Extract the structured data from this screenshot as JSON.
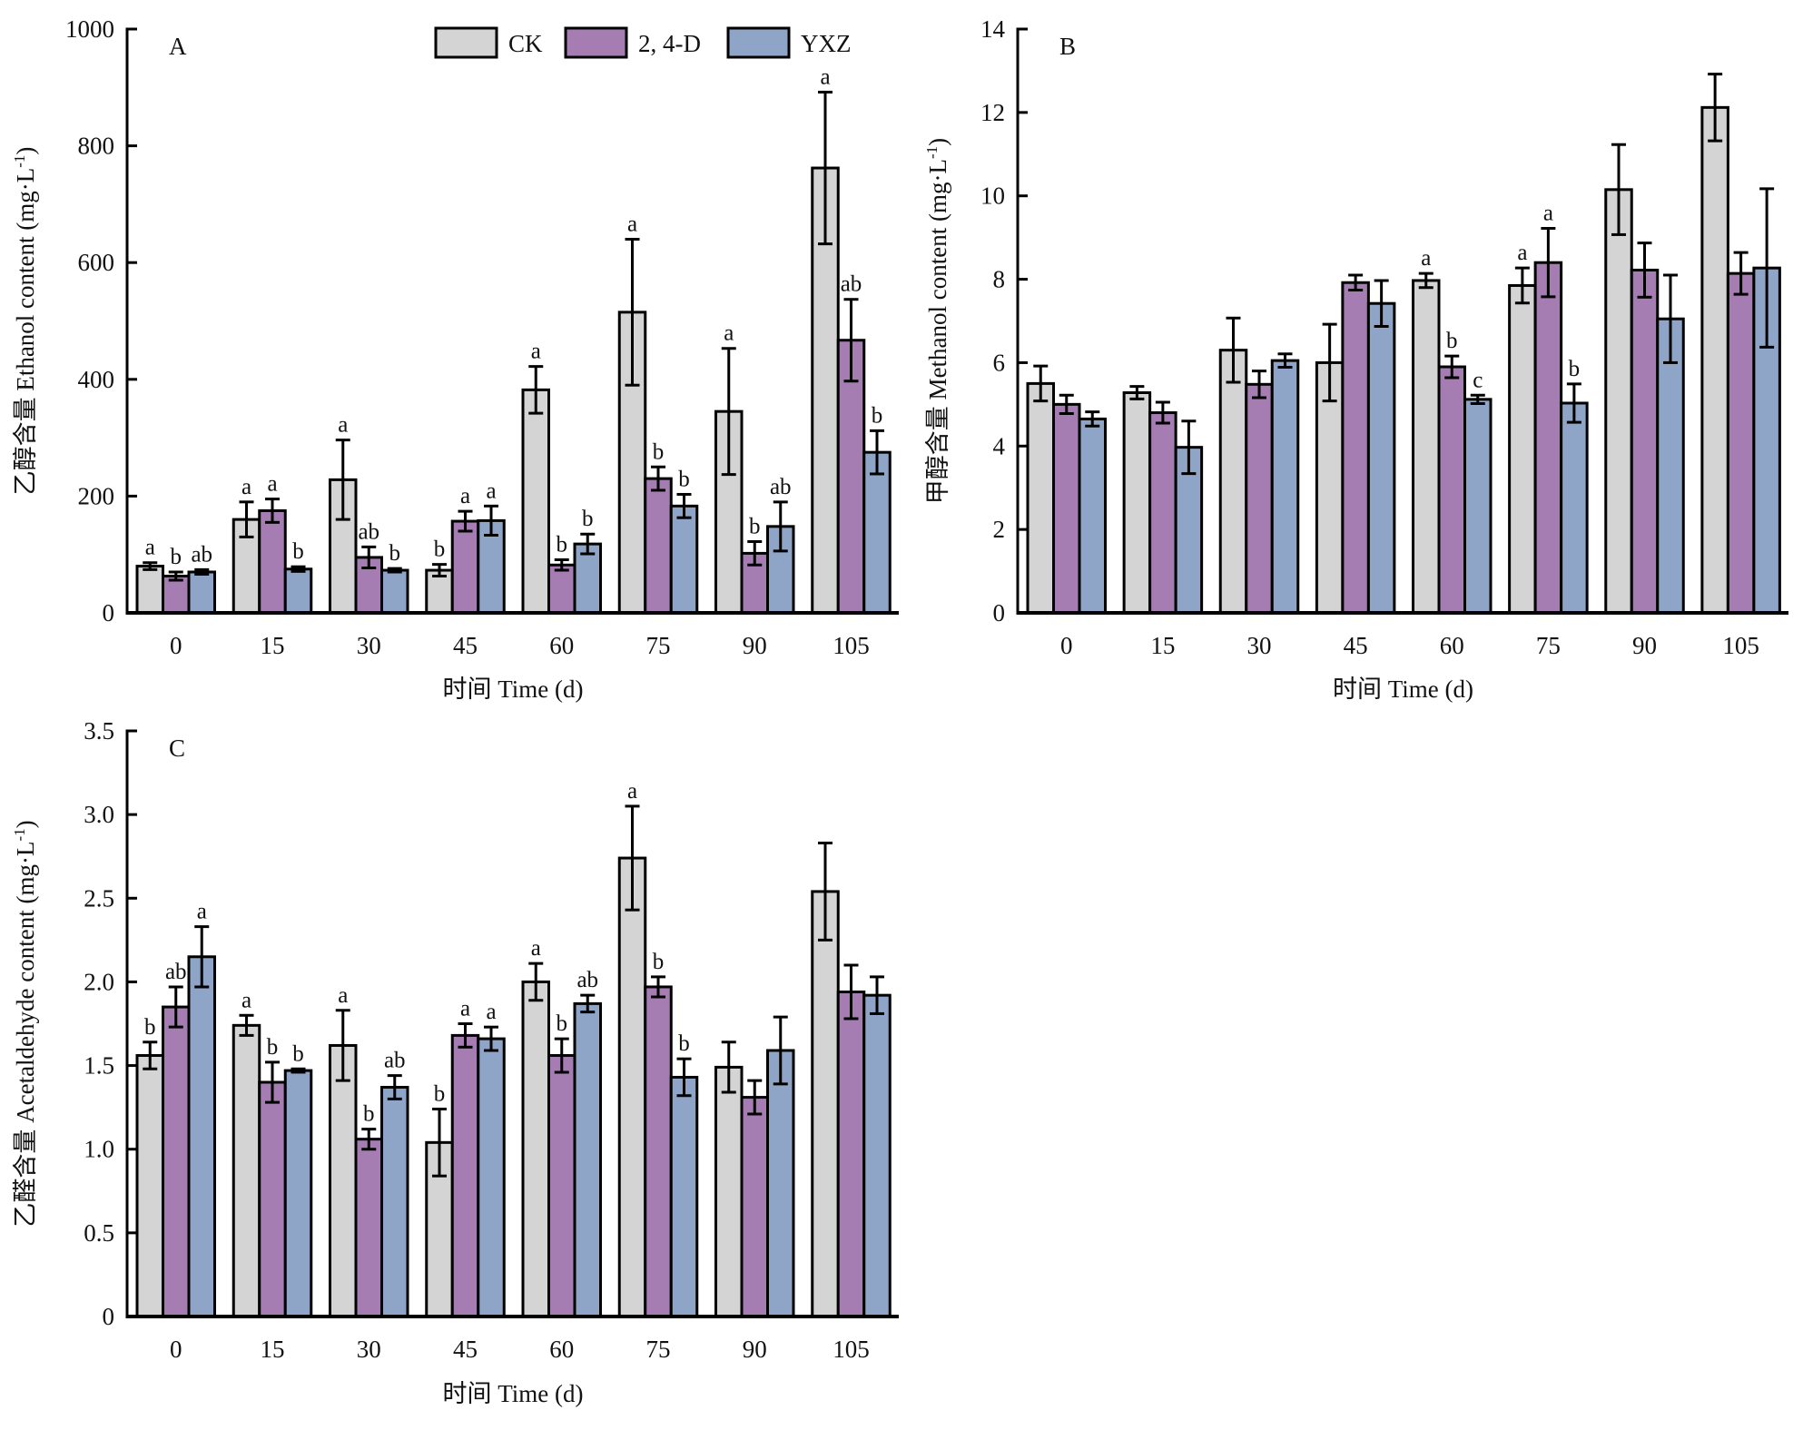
{
  "legend": {
    "entries": [
      {
        "name": "CK",
        "color": "#d4d4d4"
      },
      {
        "name": "2, 4-D",
        "color": "#a57db3"
      },
      {
        "name": "YXZ",
        "color": "#8fa5c8"
      }
    ]
  },
  "chart_data": [
    {
      "type": "bar",
      "panel": "A",
      "title": "",
      "xlabel": "时间 Time (d)",
      "ylabel": "乙醇含量 Ethanol content (mg·L⁻¹)",
      "ylabel_main": "乙醇含量 Ethanol content (mg·L",
      "ylabel_sup": "-1",
      "ylim": [
        0,
        1000
      ],
      "yticks": [
        0,
        200,
        400,
        600,
        800,
        1000
      ],
      "ytick_labels": [
        "0",
        "200",
        "400",
        "600",
        "800",
        "1000"
      ],
      "categories": [
        "0",
        "15",
        "30",
        "45",
        "60",
        "75",
        "90",
        "105"
      ],
      "legend_position": "top-right",
      "grid": false,
      "series": [
        {
          "name": "CK",
          "values": [
            80,
            160,
            228,
            73,
            382,
            515,
            345,
            762
          ],
          "errors": [
            6,
            30,
            68,
            10,
            40,
            125,
            108,
            130
          ],
          "letters": [
            "a",
            "a",
            "a",
            "b",
            "a",
            "a",
            "a",
            "a"
          ]
        },
        {
          "name": "2, 4-D",
          "values": [
            63,
            175,
            95,
            157,
            82,
            230,
            102,
            467
          ],
          "errors": [
            7,
            20,
            18,
            17,
            9,
            20,
            20,
            70
          ],
          "letters": [
            "b",
            "a",
            "ab",
            "a",
            "b",
            "b",
            "b",
            "ab"
          ]
        },
        {
          "name": "YXZ",
          "values": [
            70,
            75,
            73,
            158,
            118,
            183,
            148,
            275
          ],
          "errors": [
            4,
            4,
            3,
            25,
            17,
            20,
            42,
            37
          ],
          "letters": [
            "ab",
            "b",
            "b",
            "a",
            "b",
            "b",
            "ab",
            "b"
          ]
        }
      ]
    },
    {
      "type": "bar",
      "panel": "B",
      "title": "",
      "xlabel": "时间 Time (d)",
      "ylabel": "甲醇含量 Methanol content (mg·L⁻¹)",
      "ylabel_main": "甲醇含量 Methanol content (mg·L",
      "ylabel_sup": "-1",
      "ylim": [
        0,
        14
      ],
      "yticks": [
        0,
        2,
        4,
        6,
        8,
        10,
        12,
        14
      ],
      "ytick_labels": [
        "0",
        "2",
        "4",
        "6",
        "8",
        "10",
        "12",
        "14"
      ],
      "categories": [
        "0",
        "15",
        "30",
        "45",
        "60",
        "75",
        "90",
        "105"
      ],
      "grid": false,
      "series": [
        {
          "name": "CK",
          "values": [
            5.5,
            5.28,
            6.3,
            6.0,
            7.97,
            7.85,
            10.15,
            12.12
          ],
          "errors": [
            0.42,
            0.15,
            0.77,
            0.92,
            0.17,
            0.42,
            1.08,
            0.8
          ],
          "letters": [
            "",
            "",
            "",
            "",
            "a",
            "a",
            "",
            ""
          ]
        },
        {
          "name": "2, 4-D",
          "values": [
            5.0,
            4.8,
            5.48,
            7.92,
            5.9,
            8.4,
            8.22,
            8.14
          ],
          "errors": [
            0.22,
            0.25,
            0.32,
            0.18,
            0.26,
            0.82,
            0.65,
            0.5
          ],
          "letters": [
            "",
            "",
            "",
            "",
            "b",
            "a",
            "",
            ""
          ]
        },
        {
          "name": "YXZ",
          "values": [
            4.65,
            3.97,
            6.05,
            7.42,
            5.12,
            5.03,
            7.05,
            8.27
          ],
          "errors": [
            0.17,
            0.63,
            0.16,
            0.55,
            0.1,
            0.46,
            1.05,
            1.9
          ],
          "letters": [
            "",
            "",
            "",
            "",
            "c",
            "b",
            "",
            ""
          ]
        }
      ]
    },
    {
      "type": "bar",
      "panel": "C",
      "title": "",
      "xlabel": "时间 Time (d)",
      "ylabel": "乙醛含量 Acetaldehyde content (mg·L⁻¹)",
      "ylabel_main": "乙醛含量 Acetaldehyde content (mg·L",
      "ylabel_sup": "-1",
      "ylim": [
        0,
        3.5
      ],
      "yticks": [
        0,
        0.5,
        1.0,
        1.5,
        2.0,
        2.5,
        3.0,
        3.5
      ],
      "ytick_labels": [
        "0",
        "0.5",
        "1.0",
        "1.5",
        "2.0",
        "2.5",
        "3.0",
        "3.5"
      ],
      "categories": [
        "0",
        "15",
        "30",
        "45",
        "60",
        "75",
        "90",
        "105"
      ],
      "grid": false,
      "series": [
        {
          "name": "CK",
          "values": [
            1.56,
            1.74,
            1.62,
            1.04,
            2.0,
            2.74,
            1.49,
            2.54
          ],
          "errors": [
            0.08,
            0.06,
            0.21,
            0.2,
            0.11,
            0.31,
            0.15,
            0.29
          ],
          "letters": [
            "b",
            "a",
            "a",
            "b",
            "a",
            "a",
            "",
            ""
          ]
        },
        {
          "name": "2, 4-D",
          "values": [
            1.85,
            1.4,
            1.06,
            1.68,
            1.56,
            1.97,
            1.31,
            1.94
          ],
          "errors": [
            0.12,
            0.12,
            0.06,
            0.07,
            0.1,
            0.06,
            0.1,
            0.16
          ],
          "letters": [
            "ab",
            "b",
            "b",
            "a",
            "b",
            "b",
            "",
            ""
          ]
        },
        {
          "name": "YXZ",
          "values": [
            2.15,
            1.47,
            1.37,
            1.66,
            1.87,
            1.43,
            1.59,
            1.92
          ],
          "errors": [
            0.18,
            0.01,
            0.07,
            0.07,
            0.05,
            0.11,
            0.2,
            0.11
          ],
          "letters": [
            "a",
            "b",
            "ab",
            "a",
            "ab",
            "b",
            "",
            ""
          ]
        }
      ]
    }
  ]
}
